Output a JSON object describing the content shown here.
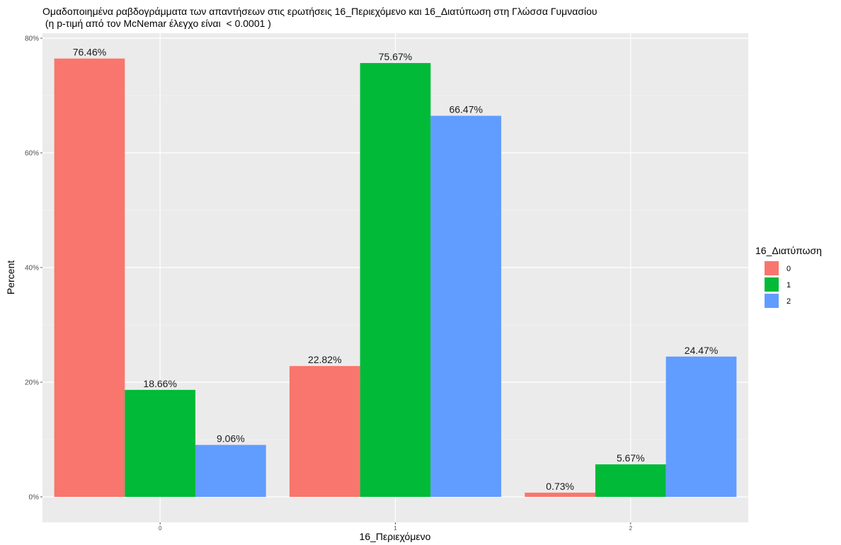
{
  "chart_data": {
    "type": "bar",
    "title": "Ομαδοποιημένα ραβδογράμματα των απαντήσεων στις ερωτήσεις 16_Περιεχόμενο και 16_Διατύπωση στη Γλώσσα Γυμνασίου",
    "subtitle": " (η p-τιμή από τον McNemar έλεγχο είναι  < 0.0001 )",
    "xlabel": "16_Περιεχόμενο",
    "ylabel": "Percent",
    "categories": [
      "0",
      "1",
      "2"
    ],
    "ylim": [
      0,
      80
    ],
    "y_ticks": [
      {
        "value": 0,
        "label": "0%"
      },
      {
        "value": 20,
        "label": "20%"
      },
      {
        "value": 40,
        "label": "40%"
      },
      {
        "value": 60,
        "label": "60%"
      },
      {
        "value": 80,
        "label": "80%"
      }
    ],
    "grid": true,
    "legend": {
      "title": "16_Διατύπωση",
      "position": "right"
    },
    "series": [
      {
        "name": "0",
        "color": "#F8766D",
        "values": [
          76.46,
          22.82,
          0.73
        ],
        "labels": [
          "76.46%",
          "22.82%",
          "0.73%"
        ]
      },
      {
        "name": "1",
        "color": "#00BA38",
        "values": [
          18.66,
          75.67,
          5.67
        ],
        "labels": [
          "18.66%",
          "75.67%",
          "5.67%"
        ]
      },
      {
        "name": "2",
        "color": "#619CFF",
        "values": [
          9.06,
          66.47,
          24.47
        ],
        "labels": [
          "9.06%",
          "66.47%",
          "24.47%"
        ]
      }
    ]
  }
}
